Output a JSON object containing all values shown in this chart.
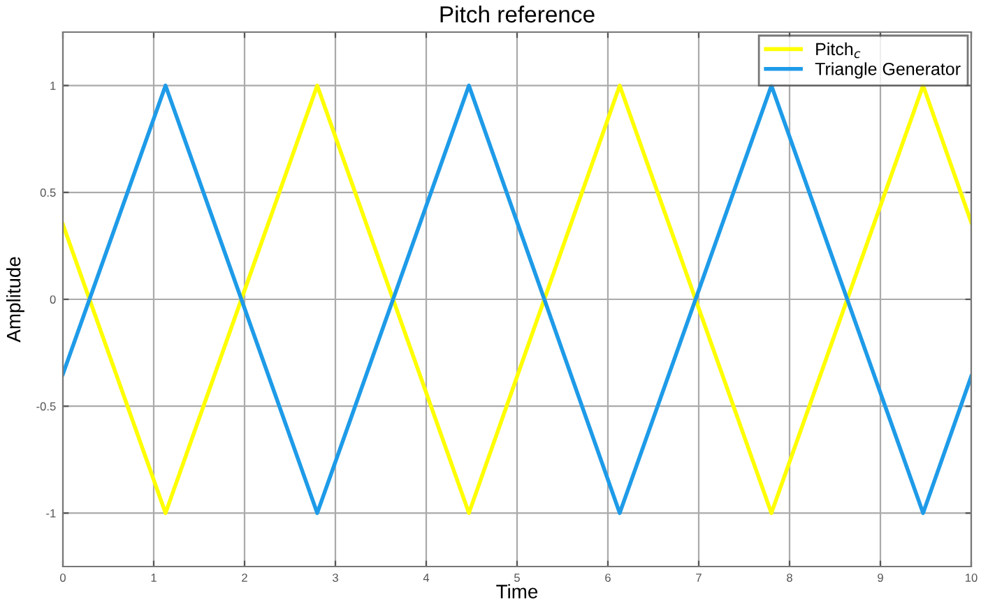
{
  "chart_data": {
    "type": "line",
    "title": "Pitch reference",
    "xlabel": "Time",
    "ylabel": "Amplitude",
    "series": [
      {
        "name": "Pitch$_{c}$",
        "color": "#ffff00",
        "x": [
          0,
          1.13,
          2.8,
          4.47,
          6.13,
          7.8,
          9.47,
          10
        ],
        "values": [
          0.35,
          -1,
          1,
          -1,
          1,
          -1,
          1,
          0.36
        ]
      },
      {
        "name": "Triangle Generator",
        "color": "#1e9be8",
        "x": [
          0,
          1.13,
          2.8,
          4.47,
          6.13,
          7.8,
          9.47,
          10
        ],
        "values": [
          -0.35,
          1,
          -1,
          1,
          -1,
          1,
          -1,
          -0.36
        ]
      }
    ],
    "xlim": [
      0,
      10
    ],
    "xticks": [
      0,
      1,
      2,
      3,
      4,
      5,
      6,
      7,
      8,
      9,
      10
    ],
    "ylim": [
      -1.25,
      1.25
    ],
    "yticks": [
      -1,
      -0.5,
      0,
      0.5,
      1
    ],
    "grid": true,
    "legend": "top right",
    "marker": "none",
    "line_style": "solid"
  }
}
